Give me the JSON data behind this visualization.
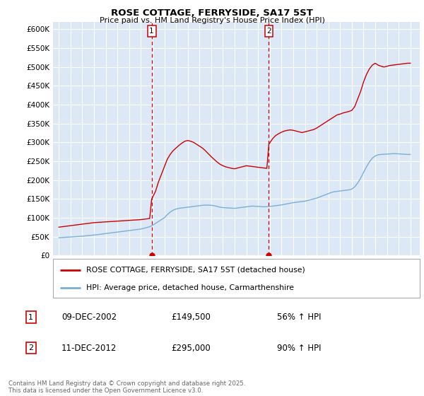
{
  "title": "ROSE COTTAGE, FERRYSIDE, SA17 5ST",
  "subtitle": "Price paid vs. HM Land Registry's House Price Index (HPI)",
  "legend_label_red": "ROSE COTTAGE, FERRYSIDE, SA17 5ST (detached house)",
  "legend_label_blue": "HPI: Average price, detached house, Carmarthenshire",
  "footnote": "Contains HM Land Registry data © Crown copyright and database right 2025.\nThis data is licensed under the Open Government Licence v3.0.",
  "marker1_date": "09-DEC-2002",
  "marker1_price": "£149,500",
  "marker1_hpi": "56% ↑ HPI",
  "marker2_date": "11-DEC-2012",
  "marker2_price": "£295,000",
  "marker2_hpi": "90% ↑ HPI",
  "ylim": [
    0,
    620000
  ],
  "yticks": [
    0,
    50000,
    100000,
    150000,
    200000,
    250000,
    300000,
    350000,
    400000,
    450000,
    500000,
    550000,
    600000
  ],
  "ytick_labels": [
    "£0",
    "£50K",
    "£100K",
    "£150K",
    "£200K",
    "£250K",
    "£300K",
    "£350K",
    "£400K",
    "£450K",
    "£500K",
    "£550K",
    "£600K"
  ],
  "plot_bg_color": "#dce8f5",
  "red_color": "#cc0000",
  "blue_color": "#7aafd4",
  "marker1_x": 2002.92,
  "marker2_x": 2012.92,
  "red_years": [
    1995.0,
    1995.25,
    1995.5,
    1995.75,
    1996.0,
    1996.25,
    1996.5,
    1996.75,
    1997.0,
    1997.25,
    1997.5,
    1997.75,
    1998.0,
    1998.25,
    1998.5,
    1998.75,
    1999.0,
    1999.25,
    1999.5,
    1999.75,
    2000.0,
    2000.25,
    2000.5,
    2000.75,
    2001.0,
    2001.25,
    2001.5,
    2001.75,
    2002.0,
    2002.25,
    2002.5,
    2002.75,
    2002.92,
    2003.25,
    2003.5,
    2003.75,
    2004.0,
    2004.25,
    2004.5,
    2004.75,
    2005.0,
    2005.25,
    2005.5,
    2005.75,
    2006.0,
    2006.25,
    2006.5,
    2006.75,
    2007.0,
    2007.25,
    2007.5,
    2007.75,
    2008.0,
    2008.25,
    2008.5,
    2008.75,
    2009.0,
    2009.25,
    2009.5,
    2009.75,
    2010.0,
    2010.25,
    2010.5,
    2010.75,
    2011.0,
    2011.25,
    2011.5,
    2011.75,
    2012.0,
    2012.25,
    2012.5,
    2012.75,
    2012.92,
    2013.25,
    2013.5,
    2013.75,
    2014.0,
    2014.25,
    2014.5,
    2014.75,
    2015.0,
    2015.25,
    2015.5,
    2015.75,
    2016.0,
    2016.25,
    2016.5,
    2016.75,
    2017.0,
    2017.25,
    2017.5,
    2017.75,
    2018.0,
    2018.25,
    2018.5,
    2018.75,
    2019.0,
    2019.25,
    2019.5,
    2019.75,
    2020.0,
    2020.25,
    2020.5,
    2020.75,
    2021.0,
    2021.25,
    2021.5,
    2021.75,
    2022.0,
    2022.25,
    2022.5,
    2022.75,
    2023.0,
    2023.25,
    2023.5,
    2023.75,
    2024.0,
    2024.25,
    2024.5,
    2024.75,
    2025.0
  ],
  "red_vals": [
    75000,
    76000,
    77000,
    78000,
    79000,
    80000,
    81000,
    82000,
    83000,
    84000,
    85000,
    86000,
    87000,
    87500,
    88000,
    88500,
    89000,
    89500,
    90000,
    90500,
    91000,
    91500,
    92000,
    92500,
    93000,
    93500,
    94000,
    94500,
    95000,
    96000,
    97000,
    98000,
    149500,
    170000,
    195000,
    215000,
    235000,
    255000,
    268000,
    278000,
    285000,
    292000,
    298000,
    303000,
    305000,
    303000,
    300000,
    295000,
    290000,
    285000,
    278000,
    270000,
    262000,
    255000,
    248000,
    242000,
    238000,
    235000,
    233000,
    231000,
    230000,
    232000,
    234000,
    236000,
    238000,
    237000,
    236000,
    235000,
    234000,
    233000,
    232000,
    231000,
    295000,
    310000,
    318000,
    323000,
    327000,
    330000,
    332000,
    333000,
    332000,
    330000,
    328000,
    326000,
    328000,
    330000,
    332000,
    334000,
    338000,
    343000,
    348000,
    353000,
    358000,
    363000,
    368000,
    373000,
    375000,
    378000,
    380000,
    382000,
    385000,
    395000,
    415000,
    435000,
    460000,
    480000,
    495000,
    505000,
    510000,
    505000,
    502000,
    500000,
    502000,
    504000,
    505000,
    506000,
    507000,
    508000,
    509000,
    510000,
    510000
  ],
  "blue_years": [
    1995.0,
    1995.25,
    1995.5,
    1995.75,
    1996.0,
    1996.25,
    1996.5,
    1996.75,
    1997.0,
    1997.25,
    1997.5,
    1997.75,
    1998.0,
    1998.25,
    1998.5,
    1998.75,
    1999.0,
    1999.25,
    1999.5,
    1999.75,
    2000.0,
    2000.25,
    2000.5,
    2000.75,
    2001.0,
    2001.25,
    2001.5,
    2001.75,
    2002.0,
    2002.25,
    2002.5,
    2002.75,
    2003.0,
    2003.25,
    2003.5,
    2003.75,
    2004.0,
    2004.25,
    2004.5,
    2004.75,
    2005.0,
    2005.25,
    2005.5,
    2005.75,
    2006.0,
    2006.25,
    2006.5,
    2006.75,
    2007.0,
    2007.25,
    2007.5,
    2007.75,
    2008.0,
    2008.25,
    2008.5,
    2008.75,
    2009.0,
    2009.25,
    2009.5,
    2009.75,
    2010.0,
    2010.25,
    2010.5,
    2010.75,
    2011.0,
    2011.25,
    2011.5,
    2011.75,
    2012.0,
    2012.25,
    2012.5,
    2012.75,
    2013.0,
    2013.25,
    2013.5,
    2013.75,
    2014.0,
    2014.25,
    2014.5,
    2014.75,
    2015.0,
    2015.25,
    2015.5,
    2015.75,
    2016.0,
    2016.25,
    2016.5,
    2016.75,
    2017.0,
    2017.25,
    2017.5,
    2017.75,
    2018.0,
    2018.25,
    2018.5,
    2018.75,
    2019.0,
    2019.25,
    2019.5,
    2019.75,
    2020.0,
    2020.25,
    2020.5,
    2020.75,
    2021.0,
    2021.25,
    2021.5,
    2021.75,
    2022.0,
    2022.25,
    2022.5,
    2022.75,
    2023.0,
    2023.25,
    2023.5,
    2023.75,
    2024.0,
    2024.25,
    2024.5,
    2024.75,
    2025.0
  ],
  "blue_vals": [
    47000,
    47500,
    48000,
    48500,
    49000,
    49500,
    50000,
    50500,
    51000,
    51800,
    52600,
    53400,
    54200,
    55000,
    56000,
    57000,
    58000,
    59000,
    60000,
    61000,
    62000,
    63000,
    64000,
    65000,
    66000,
    67000,
    68000,
    69000,
    70000,
    72000,
    74000,
    76000,
    80000,
    85000,
    90000,
    95000,
    100000,
    108000,
    115000,
    120000,
    123000,
    125000,
    126000,
    127000,
    128000,
    129000,
    130000,
    131000,
    132000,
    133000,
    133500,
    133500,
    133000,
    132000,
    130000,
    128000,
    127000,
    126500,
    126000,
    125500,
    125000,
    126000,
    127000,
    128000,
    129000,
    130000,
    131000,
    130500,
    130000,
    129500,
    129000,
    129500,
    130000,
    131000,
    132000,
    133000,
    134000,
    135500,
    137000,
    138500,
    140000,
    141000,
    142000,
    143000,
    144000,
    146000,
    148000,
    150000,
    152000,
    155000,
    158000,
    161000,
    164000,
    167000,
    169000,
    170000,
    171000,
    172000,
    173000,
    174000,
    176000,
    182000,
    192000,
    205000,
    220000,
    235000,
    248000,
    258000,
    264000,
    267000,
    268000,
    268500,
    269000,
    269500,
    270000,
    270000,
    269500,
    269000,
    268500,
    268000,
    268000
  ]
}
